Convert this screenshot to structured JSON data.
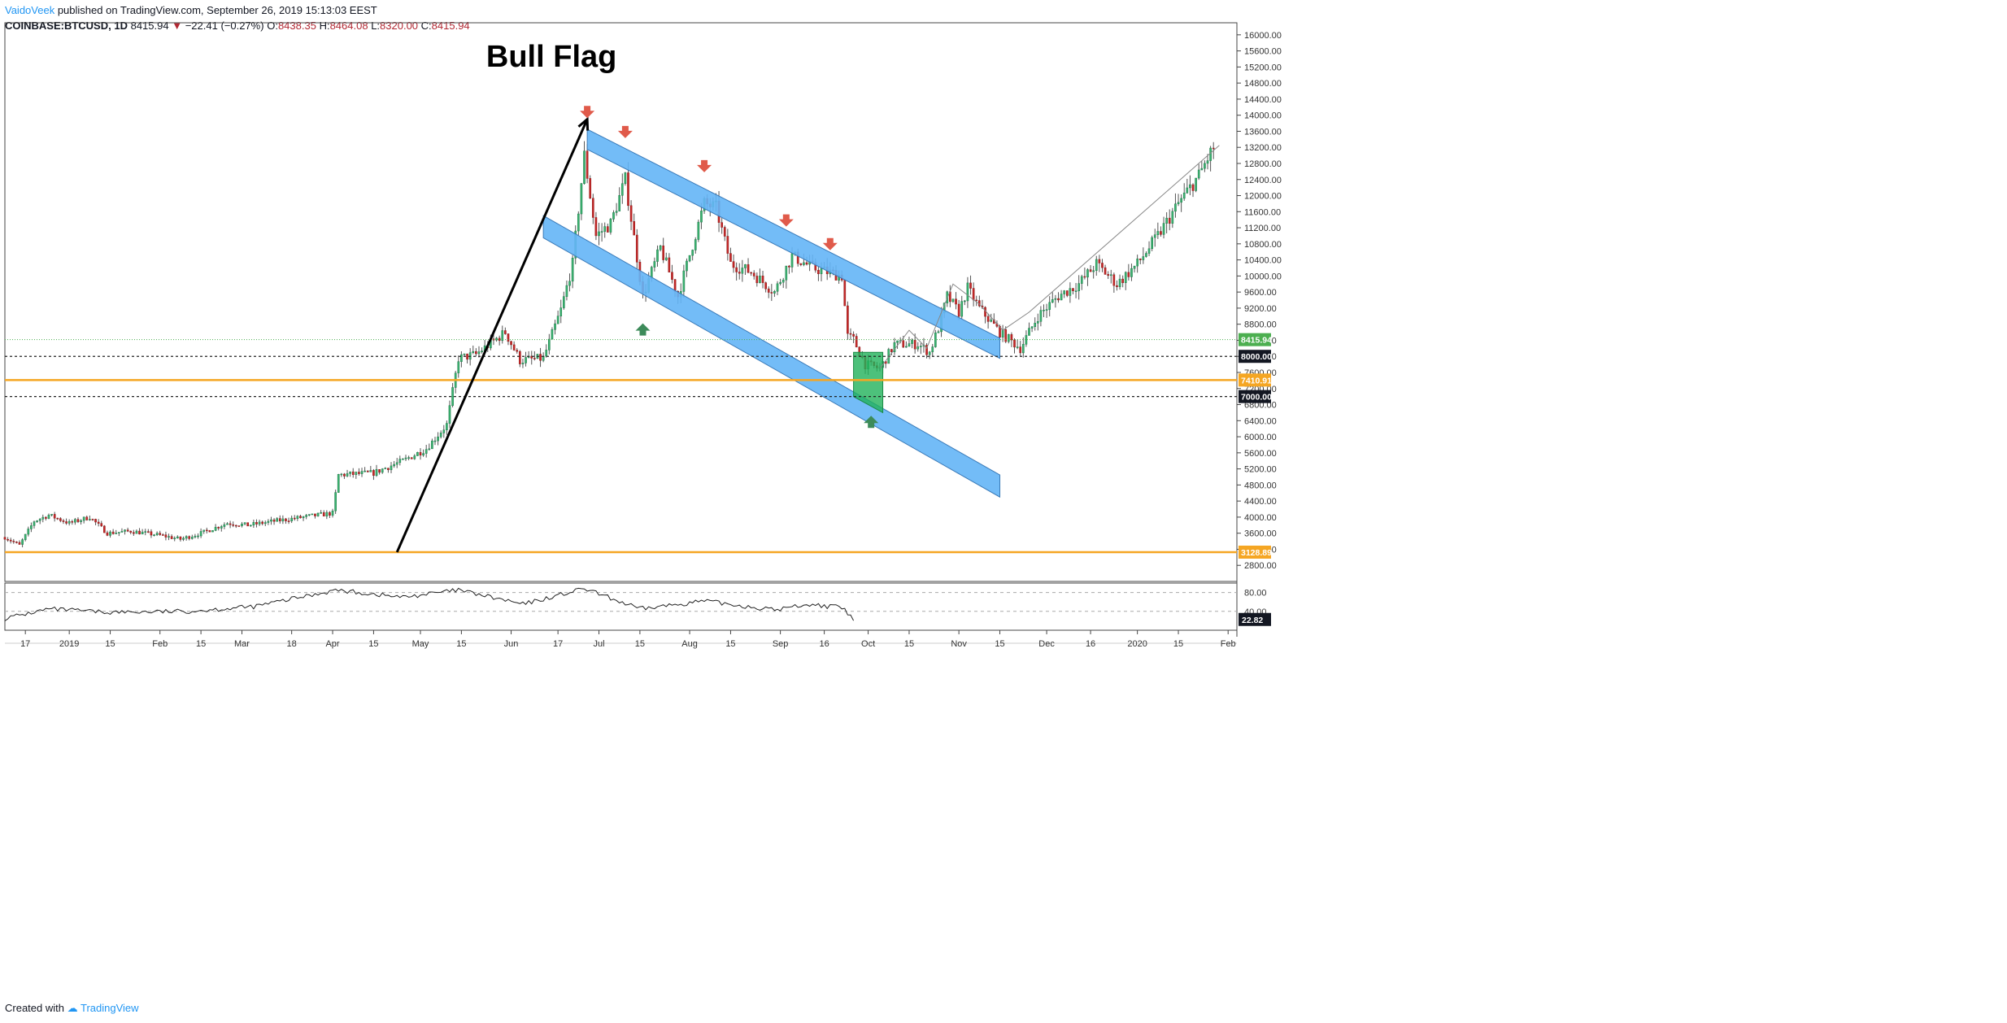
{
  "header": {
    "author": "VaidoVeek",
    "published_text": "published on TradingView.com, September 26, 2019 15:13:03 EEST",
    "symbol": "COINBASE:BTCUSD, 1D",
    "last": "8415.94",
    "change": "−22.41 (−0.27%)",
    "open_label": "O:",
    "open": "8438.35",
    "high_label": "H:",
    "high": "8464.08",
    "low_label": "L:",
    "low": "8320.00",
    "close_label": "C:",
    "close": "8415.94"
  },
  "footer": {
    "created_with": "Created with",
    "brand": "TradingView"
  },
  "colors": {
    "up": "#26a69a",
    "up_fill": "#3cb371",
    "down": "#c62828",
    "channel": "#64b5f6",
    "orange": "#f5a623",
    "green_box": "#21b25a",
    "arrow_down": "#e05a4a",
    "arrow_up": "#3d8b5a"
  },
  "chart_data": {
    "type": "candlestick",
    "title": "Bull Flag",
    "x_range_days": [
      "2018-12-10",
      "2020-02-04"
    ],
    "ylim": [
      2400,
      16300
    ],
    "y_ticks": [
      2800,
      3200,
      3600,
      4000,
      4400,
      4800,
      5200,
      5600,
      6000,
      6400,
      6800,
      7200,
      7600,
      8000,
      8400,
      8800,
      9200,
      9600,
      10000,
      10400,
      10800,
      11200,
      11600,
      12000,
      12400,
      12800,
      13200,
      13600,
      14000,
      14400,
      14800,
      15200,
      15600,
      16000
    ],
    "y_tick_labels": [
      "2800.00",
      "3200.00",
      "3600.00",
      "4000.00",
      "4400.00",
      "4800.00",
      "5200.00",
      "5600.00",
      "6000.00",
      "6400.00",
      "6800.00",
      "7200.00",
      "7600.00",
      "8000.00",
      "8400.00",
      "8800.00",
      "9200.00",
      "9600.00",
      "10000.00",
      "10400.00",
      "10800.00",
      "11200.00",
      "11600.00",
      "12000.00",
      "12400.00",
      "12800.00",
      "13200.00",
      "13600.00",
      "14000.00",
      "14400.00",
      "14800.00",
      "15200.00",
      "15600.00",
      "16000.00"
    ],
    "x_ticks": [
      {
        "date": "2018-12-17",
        "label": "17"
      },
      {
        "date": "2019-01-01",
        "label": "2019"
      },
      {
        "date": "2019-01-15",
        "label": "15"
      },
      {
        "date": "2019-02-01",
        "label": "Feb"
      },
      {
        "date": "2019-02-15",
        "label": "15"
      },
      {
        "date": "2019-03-01",
        "label": "Mar"
      },
      {
        "date": "2019-03-18",
        "label": "18"
      },
      {
        "date": "2019-04-01",
        "label": "Apr"
      },
      {
        "date": "2019-04-15",
        "label": "15"
      },
      {
        "date": "2019-05-01",
        "label": "May"
      },
      {
        "date": "2019-05-15",
        "label": "15"
      },
      {
        "date": "2019-06-01",
        "label": "Jun"
      },
      {
        "date": "2019-06-17",
        "label": "17"
      },
      {
        "date": "2019-07-01",
        "label": "Jul"
      },
      {
        "date": "2019-07-15",
        "label": "15"
      },
      {
        "date": "2019-08-01",
        "label": "Aug"
      },
      {
        "date": "2019-08-15",
        "label": "15"
      },
      {
        "date": "2019-09-01",
        "label": "Sep"
      },
      {
        "date": "2019-09-16",
        "label": "16"
      },
      {
        "date": "2019-10-01",
        "label": "Oct"
      },
      {
        "date": "2019-10-15",
        "label": "15"
      },
      {
        "date": "2019-11-01",
        "label": "Nov"
      },
      {
        "date": "2019-11-15",
        "label": "15"
      },
      {
        "date": "2019-12-01",
        "label": "Dec"
      },
      {
        "date": "2019-12-16",
        "label": "16"
      },
      {
        "date": "2020-01-01",
        "label": "2020"
      },
      {
        "date": "2020-01-15",
        "label": "15"
      },
      {
        "date": "2020-02-01",
        "label": "Feb"
      }
    ],
    "price_path": [
      [
        "2018-12-10",
        3500
      ],
      [
        "2018-12-15",
        3300
      ],
      [
        "2018-12-20",
        3900
      ],
      [
        "2018-12-25",
        4050
      ],
      [
        "2019-01-01",
        3850
      ],
      [
        "2019-01-08",
        4000
      ],
      [
        "2019-01-14",
        3600
      ],
      [
        "2019-01-22",
        3650
      ],
      [
        "2019-02-01",
        3550
      ],
      [
        "2019-02-08",
        3450
      ],
      [
        "2019-02-15",
        3600
      ],
      [
        "2019-02-24",
        3850
      ],
      [
        "2019-03-03",
        3800
      ],
      [
        "2019-03-12",
        3900
      ],
      [
        "2019-03-22",
        4000
      ],
      [
        "2019-04-01",
        4100
      ],
      [
        "2019-04-03",
        5050
      ],
      [
        "2019-04-15",
        5100
      ],
      [
        "2019-04-25",
        5400
      ],
      [
        "2019-05-03",
        5700
      ],
      [
        "2019-05-10",
        6300
      ],
      [
        "2019-05-14",
        7950
      ],
      [
        "2019-05-20",
        8050
      ],
      [
        "2019-05-30",
        8600
      ],
      [
        "2019-06-04",
        7900
      ],
      [
        "2019-06-12",
        7950
      ],
      [
        "2019-06-18",
        9150
      ],
      [
        "2019-06-22",
        10300
      ],
      [
        "2019-06-26",
        13000
      ],
      [
        "2019-06-30",
        11000
      ],
      [
        "2019-07-05",
        11300
      ],
      [
        "2019-07-10",
        12400
      ],
      [
        "2019-07-16",
        9500
      ],
      [
        "2019-07-22",
        10700
      ],
      [
        "2019-07-28",
        9500
      ],
      [
        "2019-08-06",
        11800
      ],
      [
        "2019-08-10",
        11700
      ],
      [
        "2019-08-15",
        10300
      ],
      [
        "2019-08-22",
        10100
      ],
      [
        "2019-08-30",
        9600
      ],
      [
        "2019-09-05",
        10500
      ],
      [
        "2019-09-12",
        10200
      ],
      [
        "2019-09-22",
        10000
      ],
      [
        "2019-09-24",
        8500
      ],
      [
        "2019-09-26",
        8416
      ],
      [
        "2019-09-30",
        7800
      ],
      [
        "2019-10-05",
        7700
      ],
      [
        "2019-10-10",
        8300
      ],
      [
        "2019-10-18",
        8300
      ],
      [
        "2019-10-22",
        8100
      ],
      [
        "2019-10-25",
        8700
      ],
      [
        "2019-10-28",
        9500
      ],
      [
        "2019-11-01",
        9100
      ],
      [
        "2019-11-04",
        9700
      ],
      [
        "2019-11-08",
        9200
      ],
      [
        "2019-11-15",
        8600
      ],
      [
        "2019-11-22",
        8200
      ],
      [
        "2019-11-28",
        9000
      ],
      [
        "2019-12-05",
        9500
      ],
      [
        "2019-12-12",
        9800
      ],
      [
        "2019-12-18",
        10300
      ],
      [
        "2019-12-25",
        9800
      ],
      [
        "2020-01-01",
        10300
      ],
      [
        "2020-01-08",
        11000
      ],
      [
        "2020-01-15",
        11800
      ],
      [
        "2020-01-22",
        12500
      ],
      [
        "2020-01-27",
        13200
      ]
    ],
    "horizontal_levels": [
      {
        "value": 8415.94,
        "label": "8415.94",
        "style": "current"
      },
      {
        "value": 8000,
        "label": "8000.00",
        "style": "dashed"
      },
      {
        "value": 7410.91,
        "label": "7410.91",
        "style": "orange"
      },
      {
        "value": 7000,
        "label": "7000.00",
        "style": "dashed"
      },
      {
        "value": 3128.89,
        "label": "3128.89",
        "style": "orange"
      }
    ],
    "channel_upper": {
      "start": [
        "2019-06-27",
        13650
      ],
      "end": [
        "2019-11-15",
        8450
      ],
      "width_price": 500
    },
    "channel_lower": {
      "start": [
        "2019-06-12",
        11500
      ],
      "end": [
        "2019-11-15",
        5050
      ],
      "width_price": 550
    },
    "impulse_line": {
      "start": [
        "2019-04-23",
        3128.89
      ],
      "end": [
        "2019-06-27",
        13900
      ]
    },
    "flag_box": [
      [
        "2019-09-26",
        8100
      ],
      [
        "2019-10-06",
        8100
      ],
      [
        "2019-10-06",
        6600
      ],
      [
        "2019-09-26",
        7000
      ]
    ],
    "projection": [
      [
        "2019-10-05",
        7700
      ],
      [
        "2019-10-15",
        8650
      ],
      [
        "2019-10-21",
        8200
      ],
      [
        "2019-10-30",
        9800
      ],
      [
        "2019-11-08",
        9300
      ],
      [
        "2019-11-16",
        8650
      ],
      [
        "2019-11-25",
        9100
      ],
      [
        "2020-01-29",
        13250
      ]
    ],
    "down_arrows": [
      [
        "2019-06-27",
        14050
      ],
      [
        "2019-07-10",
        13550
      ],
      [
        "2019-08-06",
        12700
      ],
      [
        "2019-09-03",
        11350
      ],
      [
        "2019-09-18",
        10760
      ]
    ],
    "up_arrows": [
      [
        "2019-07-16",
        8700
      ],
      [
        "2019-10-02",
        6400
      ]
    ],
    "rsi": {
      "range": [
        0,
        100
      ],
      "levels": [
        80,
        40
      ],
      "tick_labels": [
        "80.00",
        "40.00"
      ],
      "last_label": "22.82",
      "points": [
        [
          "2018-12-10",
          25
        ],
        [
          "2018-12-25",
          45
        ],
        [
          "2019-01-14",
          38
        ],
        [
          "2019-02-10",
          40
        ],
        [
          "2019-03-05",
          50
        ],
        [
          "2019-04-02",
          85
        ],
        [
          "2019-04-25",
          70
        ],
        [
          "2019-05-14",
          85
        ],
        [
          "2019-06-05",
          55
        ],
        [
          "2019-06-26",
          88
        ],
        [
          "2019-07-15",
          45
        ],
        [
          "2019-08-06",
          62
        ],
        [
          "2019-08-30",
          43
        ],
        [
          "2019-09-10",
          55
        ],
        [
          "2019-09-22",
          48
        ],
        [
          "2019-09-26",
          22.82
        ]
      ]
    }
  }
}
